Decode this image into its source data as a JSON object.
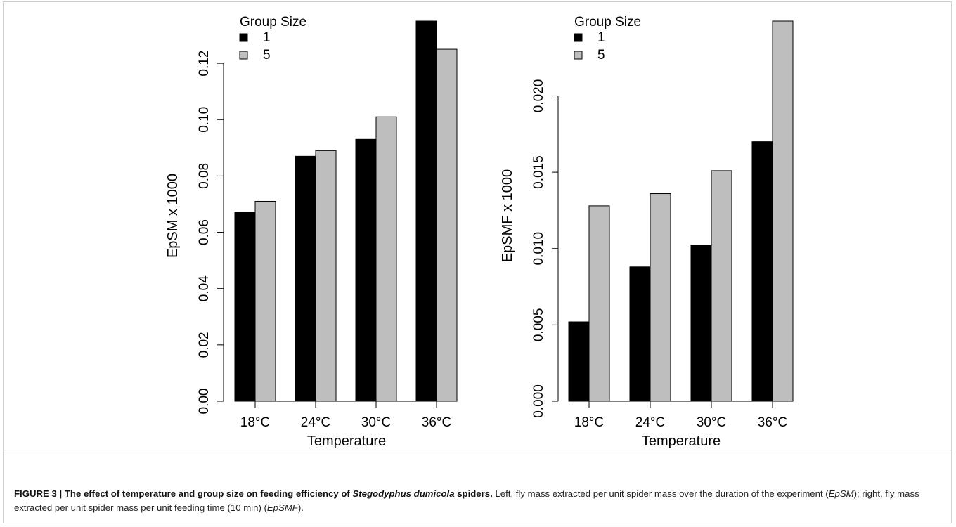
{
  "colors": {
    "group_1": "#000000",
    "group_5": "#bebebe",
    "frame": "#cfcfcf"
  },
  "chart_data": [
    {
      "type": "bar",
      "categories": [
        "18°C",
        "24°C",
        "30°C",
        "36°C"
      ],
      "series": [
        {
          "name": "1",
          "values": [
            0.067,
            0.087,
            0.093,
            0.135
          ]
        },
        {
          "name": "5",
          "values": [
            0.071,
            0.089,
            0.101,
            0.125
          ]
        }
      ],
      "xlabel": "Temperature",
      "ylabel": "EpSM x 1000",
      "yticks": [
        "0.00",
        "0.02",
        "0.04",
        "0.06",
        "0.08",
        "0.10",
        "0.12"
      ],
      "ylim": [
        0,
        0.135
      ],
      "legend_title": "Group Size",
      "legend": [
        "1",
        "5"
      ],
      "legend_position": "top-left",
      "grid": false
    },
    {
      "type": "bar",
      "categories": [
        "18°C",
        "24°C",
        "30°C",
        "36°C"
      ],
      "series": [
        {
          "name": "1",
          "values": [
            0.0052,
            0.0088,
            0.0102,
            0.017
          ]
        },
        {
          "name": "5",
          "values": [
            0.0128,
            0.0136,
            0.0151,
            0.0249
          ]
        }
      ],
      "xlabel": "Temperature",
      "ylabel": "EpSMF x 1000",
      "yticks": [
        "0.000",
        "0.005",
        "0.010",
        "0.015",
        "0.020"
      ],
      "ylim": [
        0,
        0.0249
      ],
      "legend_title": "Group Size",
      "legend": [
        "1",
        "5"
      ],
      "legend_position": "top-left",
      "grid": false
    }
  ],
  "caption": {
    "lead": "FIGURE 3 | The effect of temperature and group size on feeding efficiency of ",
    "species": "Stegodyphus dumicola",
    "lead_end": " spiders.",
    "body_1": " Left, fly mass extracted per unit spider mass over the duration of the experiment (",
    "abbr_1": "EpSM",
    "body_2": "); right, fly mass extracted per unit spider mass per unit feeding time (10 min) (",
    "abbr_2": "EpSMF",
    "body_3": ")."
  }
}
